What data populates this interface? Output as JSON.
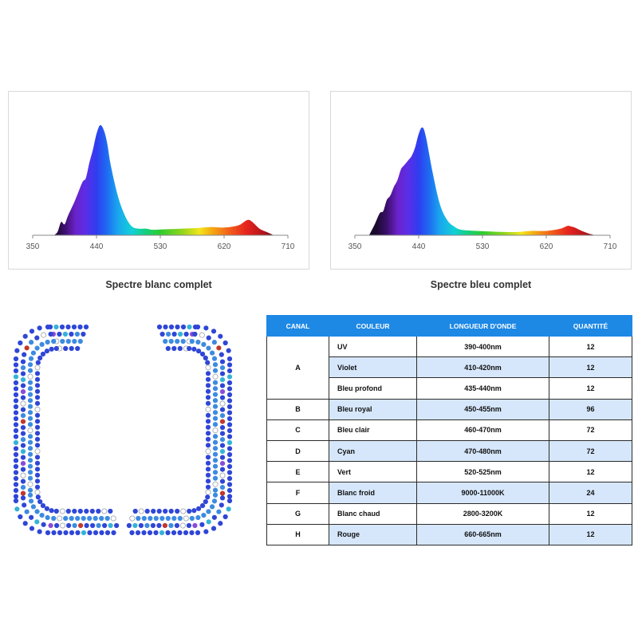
{
  "chart_data": [
    {
      "type": "area",
      "title": "",
      "caption": "Spectre blanc complet",
      "xlabel": "",
      "ylabel": "",
      "xlim": [
        350,
        710
      ],
      "x_ticks": [
        350,
        440,
        530,
        620,
        710
      ],
      "x": [
        380,
        385,
        390,
        395,
        400,
        410,
        420,
        425,
        430,
        435,
        440,
        445,
        450,
        455,
        460,
        470,
        480,
        490,
        500,
        510,
        520,
        540,
        560,
        580,
        600,
        620,
        640,
        650,
        655,
        660,
        670,
        680,
        690
      ],
      "series": [
        {
          "values": [
            0,
            0.03,
            0.12,
            0.1,
            0.18,
            0.32,
            0.48,
            0.52,
            0.66,
            0.78,
            0.92,
            1.0,
            0.96,
            0.84,
            0.64,
            0.36,
            0.18,
            0.08,
            0.06,
            0.06,
            0.05,
            0.055,
            0.06,
            0.065,
            0.075,
            0.07,
            0.09,
            0.13,
            0.14,
            0.12,
            0.06,
            0.03,
            0
          ]
        }
      ]
    },
    {
      "type": "area",
      "title": "",
      "caption": "Spectre bleu complet",
      "xlabel": "",
      "ylabel": "",
      "xlim": [
        350,
        710
      ],
      "x_ticks": [
        350,
        440,
        530,
        620,
        710
      ],
      "x": [
        370,
        378,
        385,
        390,
        395,
        400,
        405,
        410,
        415,
        420,
        425,
        430,
        435,
        440,
        445,
        450,
        460,
        470,
        480,
        490,
        500,
        520,
        540,
        560,
        580,
        600,
        620,
        640,
        650,
        655,
        660,
        670,
        680,
        690
      ],
      "series": [
        {
          "values": [
            0,
            0.1,
            0.2,
            0.22,
            0.32,
            0.36,
            0.44,
            0.5,
            0.6,
            0.64,
            0.68,
            0.72,
            0.8,
            0.92,
            0.98,
            0.9,
            0.56,
            0.28,
            0.14,
            0.08,
            0.05,
            0.04,
            0.035,
            0.03,
            0.03,
            0.04,
            0.04,
            0.06,
            0.085,
            0.08,
            0.07,
            0.04,
            0.015,
            0
          ]
        }
      ]
    }
  ],
  "led_map": {
    "colors": {
      "royal_blue": "#2f46d6",
      "light_blue": "#3d8be0",
      "cyan": "#35b3d6",
      "violet": "#8a4bd6",
      "uv": "#6d4fc7",
      "white_outline": "#9aa0aa",
      "red": "#d9322b",
      "green": "#3aa84a"
    }
  },
  "table": {
    "headers": [
      "CANAL",
      "COULEUR",
      "LONGUEUR D'ONDE",
      "QUANTITÉ"
    ],
    "rows": [
      {
        "canal": "A",
        "color": "UV",
        "wavelength": "390-400nm",
        "qty": "12"
      },
      {
        "canal": "",
        "color": "Violet",
        "wavelength": "410-420nm",
        "qty": "12"
      },
      {
        "canal": "",
        "color": "Bleu profond",
        "wavelength": "435-440nm",
        "qty": "12"
      },
      {
        "canal": "B",
        "color": "Bleu royal",
        "wavelength": "450-455nm",
        "qty": "96"
      },
      {
        "canal": "C",
        "color": "Bleu clair",
        "wavelength": "460-470nm",
        "qty": "72"
      },
      {
        "canal": "D",
        "color": "Cyan",
        "wavelength": "470-480nm",
        "qty": "72"
      },
      {
        "canal": "E",
        "color": "Vert",
        "wavelength": "520-525nm",
        "qty": "12"
      },
      {
        "canal": "F",
        "color": "Blanc froid",
        "wavelength": "9000-11000K",
        "qty": "24"
      },
      {
        "canal": "G",
        "color": "Blanc chaud",
        "wavelength": "2800-3200K",
        "qty": "12"
      },
      {
        "canal": "H",
        "color": "Rouge",
        "wavelength": "660-665nm",
        "qty": "12"
      }
    ]
  }
}
